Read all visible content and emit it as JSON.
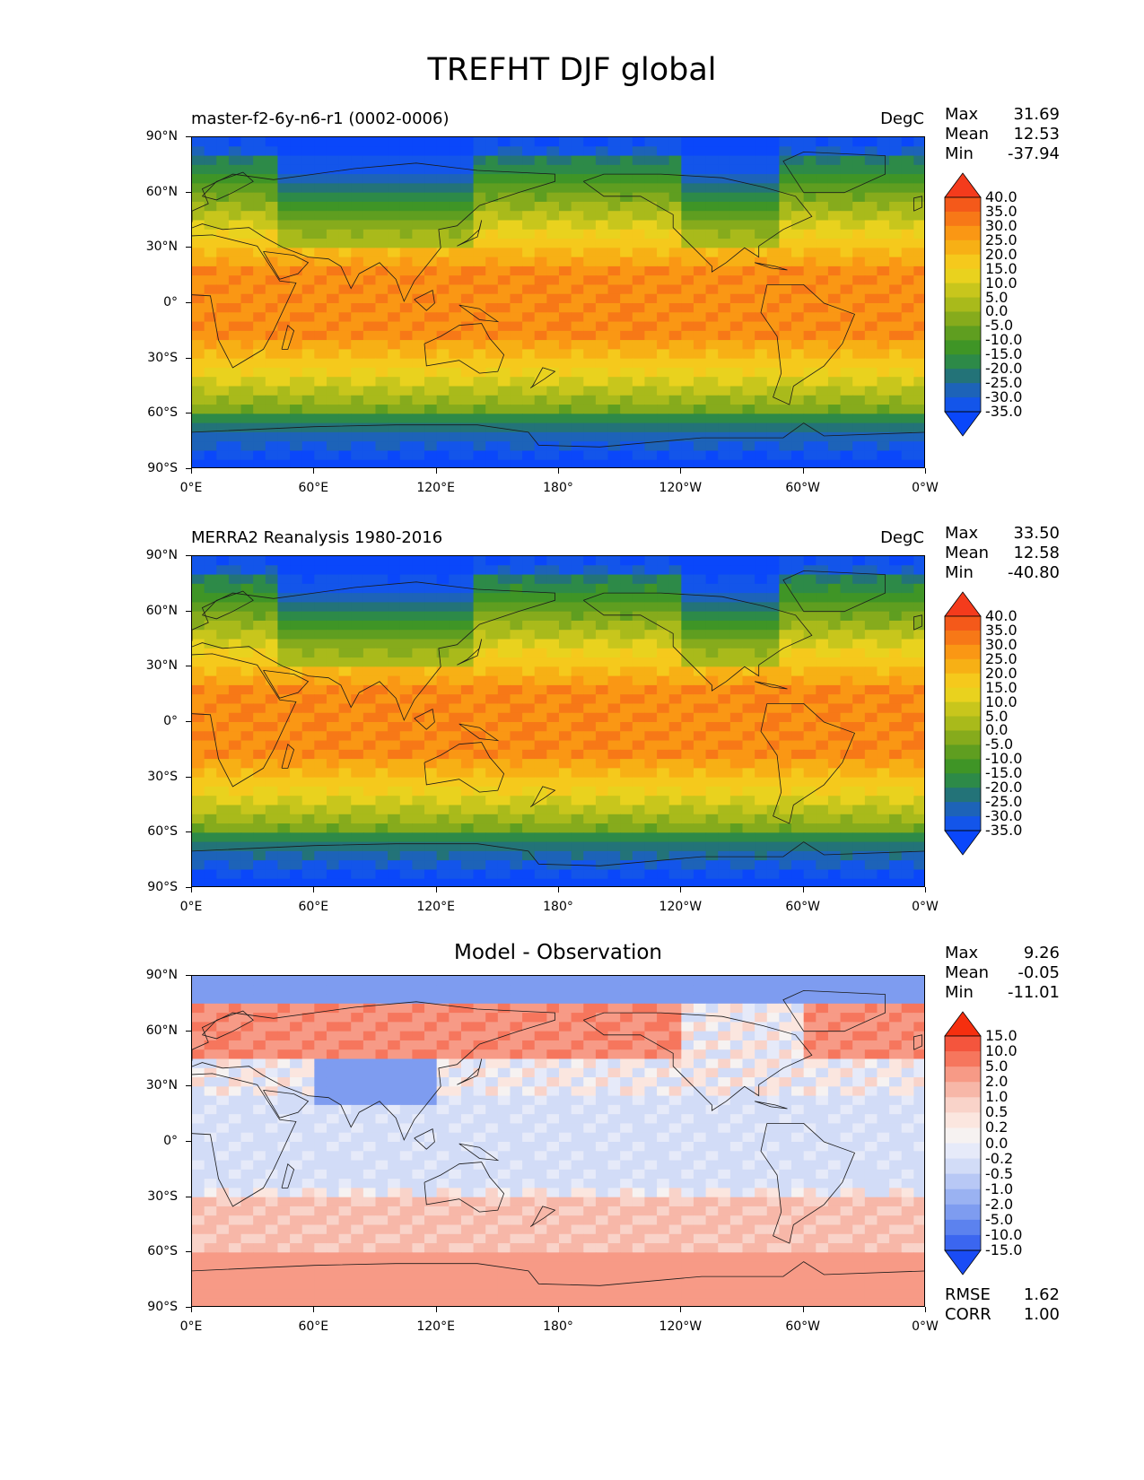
{
  "title": "TREFHT DJF global",
  "lat_labels": [
    "90°N",
    "60°N",
    "30°N",
    "0°",
    "30°S",
    "60°S",
    "90°S"
  ],
  "lon_labels": [
    "0°E",
    "60°E",
    "120°E",
    "180°",
    "120°W",
    "60°W",
    "0°W"
  ],
  "panels": [
    {
      "kind": "field",
      "left_title": "master-f2-6y-n6-r1 (0002-0006)",
      "units": "DegC",
      "center_title": "",
      "stats": [
        {
          "label": "Max",
          "value": "31.69"
        },
        {
          "label": "Mean",
          "value": "12.53"
        },
        {
          "label": "Min",
          "value": "-37.94"
        }
      ],
      "colorbar_levels": [
        "40.0",
        "35.0",
        "30.0",
        "25.0",
        "20.0",
        "15.0",
        "10.0",
        "5.0",
        "0.0",
        "-5.0",
        "-10.0",
        "-15.0",
        "-20.0",
        "-25.0",
        "-30.0",
        "-35.0"
      ],
      "colorbar_colors": [
        "#f43b1c",
        "#f4591a",
        "#f77817",
        "#fa9714",
        "#f7b015",
        "#f5c91c",
        "#e9d21e",
        "#c8c61c",
        "#a9ba1b",
        "#86ab1c",
        "#5f9e20",
        "#3f9526",
        "#2d8a48",
        "#237378",
        "#1d63b8",
        "#1355ea",
        "#0a47fa"
      ]
    },
    {
      "kind": "field",
      "left_title": "MERRA2 Reanalysis 1980-2016",
      "units": "DegC",
      "center_title": "",
      "stats": [
        {
          "label": "Max",
          "value": "33.50"
        },
        {
          "label": "Mean",
          "value": "12.58"
        },
        {
          "label": "Min",
          "value": "-40.80"
        }
      ],
      "colorbar_levels": [
        "40.0",
        "35.0",
        "30.0",
        "25.0",
        "20.0",
        "15.0",
        "10.0",
        "5.0",
        "0.0",
        "-5.0",
        "-10.0",
        "-15.0",
        "-20.0",
        "-25.0",
        "-30.0",
        "-35.0"
      ],
      "colorbar_colors": [
        "#f43b1c",
        "#f4591a",
        "#f77817",
        "#fa9714",
        "#f7b015",
        "#f5c91c",
        "#e9d21e",
        "#c8c61c",
        "#a9ba1b",
        "#86ab1c",
        "#5f9e20",
        "#3f9526",
        "#2d8a48",
        "#237378",
        "#1d63b8",
        "#1355ea",
        "#0a47fa"
      ]
    },
    {
      "kind": "diff",
      "left_title": "",
      "units": "",
      "center_title": "Model - Observation",
      "stats": [
        {
          "label": "Max",
          "value": "9.26"
        },
        {
          "label": "Mean",
          "value": "-0.05"
        },
        {
          "label": "Min",
          "value": "-11.01"
        }
      ],
      "bottom_stats": [
        {
          "label": "RMSE",
          "value": "1.62"
        },
        {
          "label": "CORR",
          "value": "1.00"
        }
      ],
      "colorbar_levels": [
        "15.0",
        "10.0",
        "5.0",
        "2.0",
        "1.0",
        "0.5",
        "0.2",
        "0.0",
        "-0.2",
        "-0.5",
        "-1.0",
        "-2.0",
        "-5.0",
        "-10.0",
        "-15.0"
      ],
      "colorbar_colors": [
        "#f52f0f",
        "#f4553d",
        "#f6765d",
        "#f79a86",
        "#f7b7a8",
        "#f9d3c9",
        "#fbe6df",
        "#f6f2f1",
        "#e6eaf9",
        "#d2dcf7",
        "#b8c8f5",
        "#9ab2f2",
        "#7e9cf0",
        "#5c82ee",
        "#3b66f0",
        "#1a4cf5"
      ]
    }
  ],
  "chart_data": [
    {
      "type": "heatmap",
      "title": "TREFHT DJF global",
      "subtitle": "master-f2-6y-n6-r1 (0002-0006)",
      "units": "DegC",
      "x_ticks": [
        "0°E",
        "60°E",
        "120°E",
        "180°",
        "120°W",
        "60°W",
        "0°W"
      ],
      "y_ticks": [
        "90°N",
        "60°N",
        "30°N",
        "0°",
        "30°S",
        "60°S",
        "90°S"
      ],
      "xlim": [
        0,
        360
      ],
      "ylim": [
        -90,
        90
      ],
      "levels": [
        -35,
        -30,
        -25,
        -20,
        -15,
        -10,
        -5,
        0,
        5,
        10,
        15,
        20,
        25,
        30,
        35,
        40
      ],
      "max": 31.69,
      "mean": 12.53,
      "min": -37.94
    },
    {
      "type": "heatmap",
      "subtitle": "MERRA2 Reanalysis 1980-2016",
      "units": "DegC",
      "x_ticks": [
        "0°E",
        "60°E",
        "120°E",
        "180°",
        "120°W",
        "60°W",
        "0°W"
      ],
      "y_ticks": [
        "90°N",
        "60°N",
        "30°N",
        "0°",
        "30°S",
        "60°S",
        "90°S"
      ],
      "xlim": [
        0,
        360
      ],
      "ylim": [
        -90,
        90
      ],
      "levels": [
        -35,
        -30,
        -25,
        -20,
        -15,
        -10,
        -5,
        0,
        5,
        10,
        15,
        20,
        25,
        30,
        35,
        40
      ],
      "max": 33.5,
      "mean": 12.58,
      "min": -40.8
    },
    {
      "type": "heatmap",
      "subtitle": "Model - Observation",
      "x_ticks": [
        "0°E",
        "60°E",
        "120°E",
        "180°",
        "120°W",
        "60°W",
        "0°W"
      ],
      "y_ticks": [
        "90°N",
        "60°N",
        "30°N",
        "0°",
        "30°S",
        "60°S",
        "90°S"
      ],
      "xlim": [
        0,
        360
      ],
      "ylim": [
        -90,
        90
      ],
      "levels": [
        -15,
        -10,
        -5,
        -2,
        -1,
        -0.5,
        -0.2,
        0,
        0.2,
        0.5,
        1,
        2,
        5,
        10,
        15
      ],
      "max": 9.26,
      "mean": -0.05,
      "min": -11.01,
      "rmse": 1.62,
      "corr": 1.0
    }
  ]
}
